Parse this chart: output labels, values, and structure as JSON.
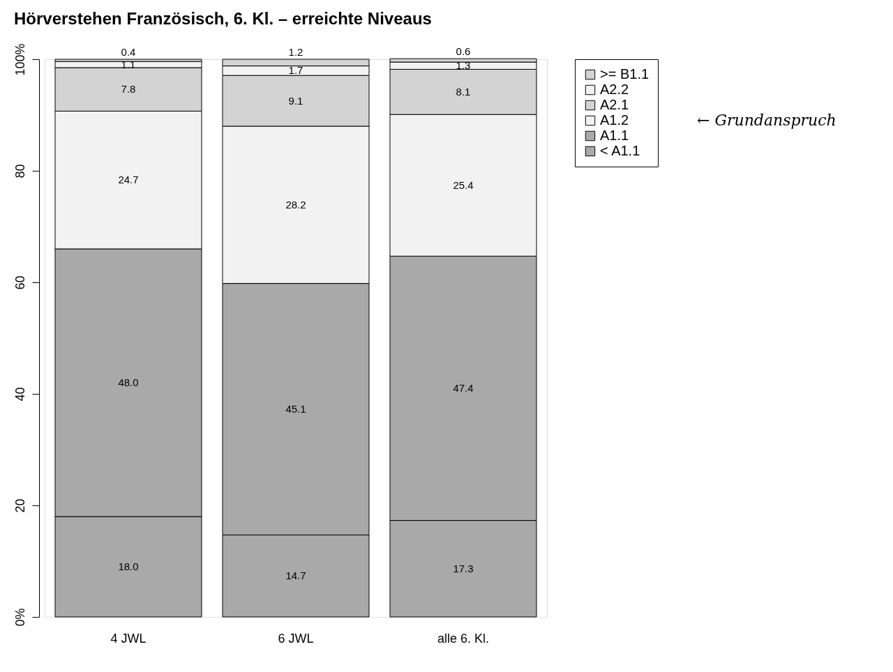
{
  "chart_data": {
    "type": "bar",
    "stacked": true,
    "title": "Hörverstehen Französisch, 6. Kl. – erreichte Niveaus",
    "categories": [
      "4 JWL",
      "6 JWL",
      "alle 6. Kl."
    ],
    "series": [
      {
        "name": "< A1.1",
        "color": "#a9a9a9",
        "values": [
          18.0,
          14.7,
          17.3
        ],
        "value_labels": [
          "18.0",
          "14.7",
          "17.3"
        ]
      },
      {
        "name": "A1.1",
        "color": "#a9a9a9",
        "values": [
          48.0,
          45.1,
          47.4
        ],
        "value_labels": [
          "48.0",
          "45.1",
          "47.4"
        ]
      },
      {
        "name": "A1.2",
        "color": "#f2f2f2",
        "values": [
          24.7,
          28.2,
          25.4
        ],
        "value_labels": [
          "24.7",
          "28.2",
          "25.4"
        ]
      },
      {
        "name": "A2.1",
        "color": "#d3d3d3",
        "values": [
          7.8,
          9.1,
          8.1
        ],
        "value_labels": [
          "7.8",
          "9.1",
          "8.1"
        ]
      },
      {
        "name": "A2.2",
        "color": "#f2f2f2",
        "values": [
          1.1,
          1.7,
          1.3
        ],
        "value_labels": [
          "1.1",
          "1.7",
          "1.3"
        ]
      },
      {
        "name": ">= B1.1",
        "color": "#d3d3d3",
        "values": [
          0.4,
          1.2,
          0.6
        ],
        "value_labels": [
          "0.4",
          "1.2",
          "0.6"
        ]
      }
    ],
    "ylim": [
      0,
      100
    ],
    "yticks": [
      {
        "value": 0,
        "label": "0%"
      },
      20,
      40,
      60,
      80,
      {
        "value": 100,
        "label": "100%"
      }
    ],
    "grid": false,
    "legend": "top right",
    "annotations": [
      "← Grundanspruch"
    ]
  }
}
